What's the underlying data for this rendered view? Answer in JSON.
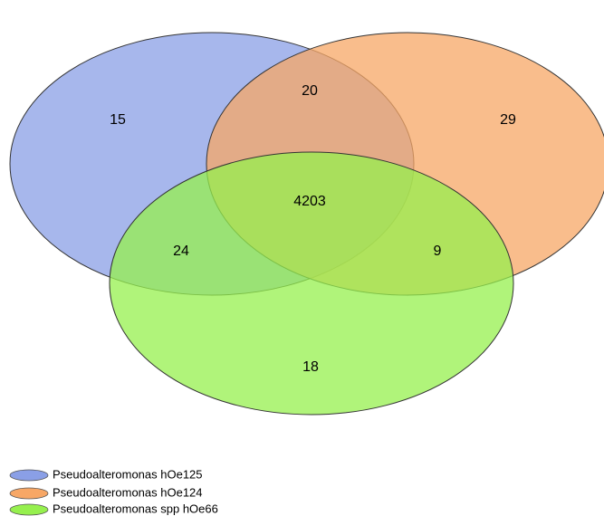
{
  "chart_data": {
    "type": "venn",
    "sets": [
      {
        "name": "Pseudoalteromonas hOe125",
        "color": "#8a9fe6"
      },
      {
        "name": "Pseudoalteromonas hOe124",
        "color": "#f7a766"
      },
      {
        "name": "Pseudoalteromonas spp hOe66",
        "color": "#96f04e"
      }
    ],
    "regions": [
      {
        "sets": [
          "Pseudoalteromonas hOe125"
        ],
        "value": "15"
      },
      {
        "sets": [
          "Pseudoalteromonas hOe124"
        ],
        "value": "29"
      },
      {
        "sets": [
          "Pseudoalteromonas spp hOe66"
        ],
        "value": "18"
      },
      {
        "sets": [
          "Pseudoalteromonas hOe125",
          "Pseudoalteromonas hOe124"
        ],
        "value": "20"
      },
      {
        "sets": [
          "Pseudoalteromonas hOe125",
          "Pseudoalteromonas spp hOe66"
        ],
        "value": "24"
      },
      {
        "sets": [
          "Pseudoalteromonas hOe124",
          "Pseudoalteromonas spp hOe66"
        ],
        "value": "9"
      },
      {
        "sets": [
          "Pseudoalteromonas hOe125",
          "Pseudoalteromonas hOe124",
          "Pseudoalteromonas spp hOe66"
        ],
        "value": "4203"
      }
    ],
    "legend_placement": "bottom-left"
  }
}
